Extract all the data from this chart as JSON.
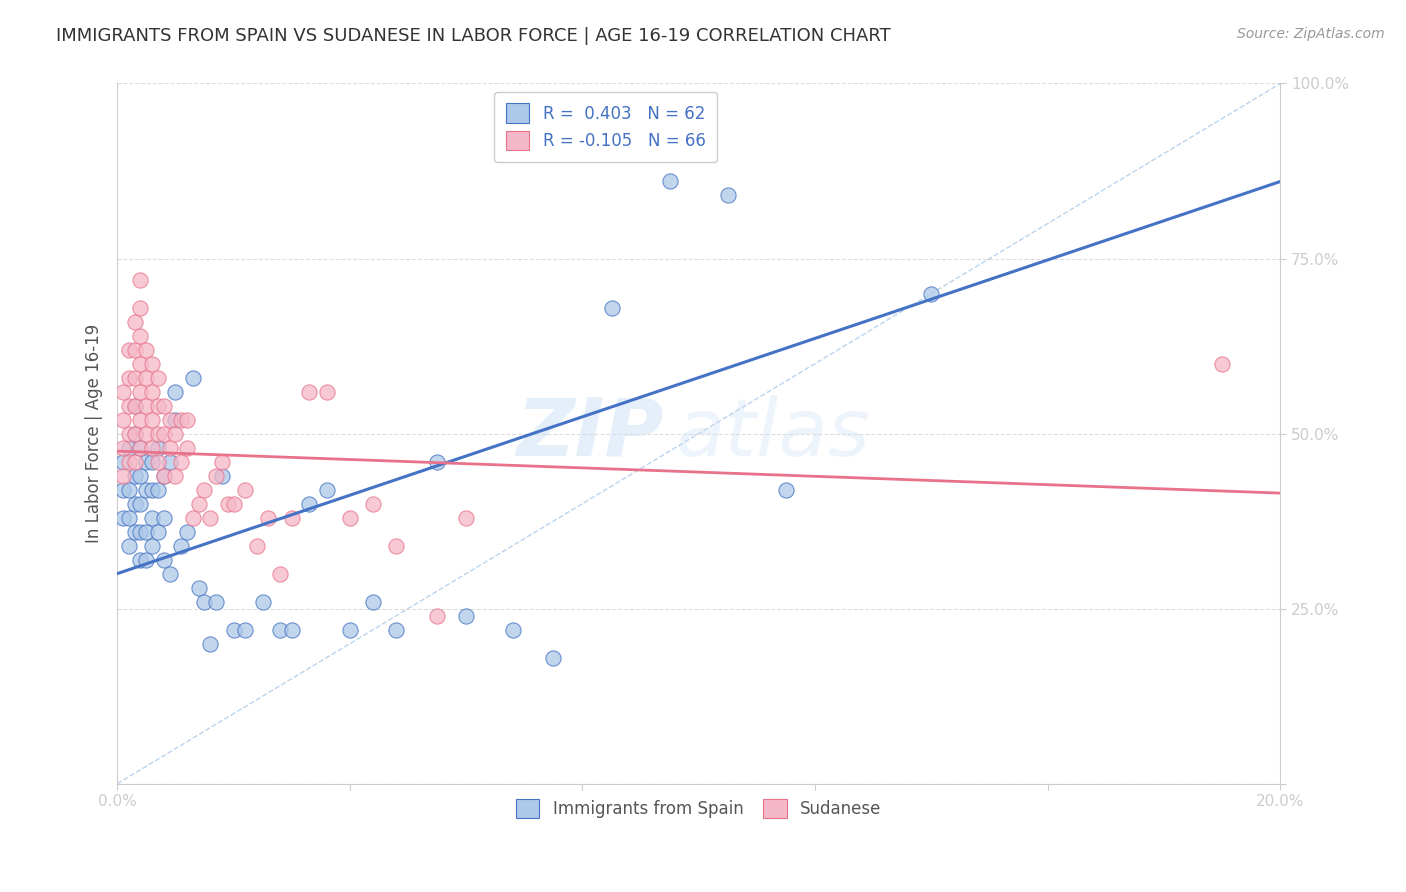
{
  "title": "IMMIGRANTS FROM SPAIN VS SUDANESE IN LABOR FORCE | AGE 16-19 CORRELATION CHART",
  "source": "Source: ZipAtlas.com",
  "ylabel": "In Labor Force | Age 16-19",
  "xlim": [
    0.0,
    0.2
  ],
  "ylim": [
    0.0,
    1.0
  ],
  "legend_entries": [
    {
      "label": "R =  0.403   N = 62",
      "color": "#adc8e8"
    },
    {
      "label": "R = -0.105   N = 66",
      "color": "#f5b8c8"
    }
  ],
  "legend_bottom": [
    "Immigrants from Spain",
    "Sudanese"
  ],
  "blue_color": "#4472c4",
  "pink_color": "#e8728a",
  "watermark_zip": "ZIP",
  "watermark_atlas": "atlas",
  "blue_line_x": [
    0.0,
    0.2
  ],
  "blue_line_y": [
    0.3,
    0.86
  ],
  "pink_line_x": [
    0.0,
    0.2
  ],
  "pink_line_y": [
    0.475,
    0.415
  ],
  "diag_line_x": [
    0.0,
    0.2
  ],
  "diag_line_y": [
    0.0,
    1.0
  ],
  "spain_x": [
    0.001,
    0.001,
    0.001,
    0.002,
    0.002,
    0.002,
    0.002,
    0.003,
    0.003,
    0.003,
    0.003,
    0.003,
    0.004,
    0.004,
    0.004,
    0.004,
    0.004,
    0.005,
    0.005,
    0.005,
    0.005,
    0.006,
    0.006,
    0.006,
    0.006,
    0.007,
    0.007,
    0.007,
    0.008,
    0.008,
    0.008,
    0.009,
    0.009,
    0.01,
    0.01,
    0.011,
    0.012,
    0.013,
    0.014,
    0.015,
    0.016,
    0.017,
    0.018,
    0.02,
    0.022,
    0.025,
    0.028,
    0.03,
    0.033,
    0.036,
    0.04,
    0.044,
    0.048,
    0.055,
    0.06,
    0.068,
    0.075,
    0.085,
    0.095,
    0.105,
    0.115,
    0.14
  ],
  "spain_y": [
    0.38,
    0.42,
    0.46,
    0.34,
    0.38,
    0.42,
    0.48,
    0.36,
    0.4,
    0.44,
    0.5,
    0.54,
    0.32,
    0.36,
    0.4,
    0.44,
    0.48,
    0.32,
    0.36,
    0.42,
    0.46,
    0.34,
    0.38,
    0.42,
    0.46,
    0.36,
    0.42,
    0.48,
    0.32,
    0.38,
    0.44,
    0.3,
    0.46,
    0.52,
    0.56,
    0.34,
    0.36,
    0.58,
    0.28,
    0.26,
    0.2,
    0.26,
    0.44,
    0.22,
    0.22,
    0.26,
    0.22,
    0.22,
    0.4,
    0.42,
    0.22,
    0.26,
    0.22,
    0.46,
    0.24,
    0.22,
    0.18,
    0.68,
    0.86,
    0.84,
    0.42,
    0.7
  ],
  "sudan_x": [
    0.001,
    0.001,
    0.001,
    0.001,
    0.002,
    0.002,
    0.002,
    0.002,
    0.002,
    0.003,
    0.003,
    0.003,
    0.003,
    0.003,
    0.003,
    0.004,
    0.004,
    0.004,
    0.004,
    0.004,
    0.004,
    0.004,
    0.005,
    0.005,
    0.005,
    0.005,
    0.006,
    0.006,
    0.006,
    0.006,
    0.007,
    0.007,
    0.007,
    0.007,
    0.008,
    0.008,
    0.008,
    0.009,
    0.009,
    0.01,
    0.01,
    0.011,
    0.011,
    0.012,
    0.012,
    0.013,
    0.014,
    0.015,
    0.016,
    0.017,
    0.018,
    0.019,
    0.02,
    0.022,
    0.024,
    0.026,
    0.028,
    0.03,
    0.033,
    0.036,
    0.04,
    0.044,
    0.048,
    0.055,
    0.06,
    0.19
  ],
  "sudan_y": [
    0.44,
    0.48,
    0.52,
    0.56,
    0.46,
    0.5,
    0.54,
    0.58,
    0.62,
    0.46,
    0.5,
    0.54,
    0.58,
    0.62,
    0.66,
    0.48,
    0.52,
    0.56,
    0.6,
    0.64,
    0.68,
    0.72,
    0.5,
    0.54,
    0.58,
    0.62,
    0.48,
    0.52,
    0.56,
    0.6,
    0.46,
    0.5,
    0.54,
    0.58,
    0.44,
    0.5,
    0.54,
    0.48,
    0.52,
    0.44,
    0.5,
    0.46,
    0.52,
    0.48,
    0.52,
    0.38,
    0.4,
    0.42,
    0.38,
    0.44,
    0.46,
    0.4,
    0.4,
    0.42,
    0.34,
    0.38,
    0.3,
    0.38,
    0.56,
    0.56,
    0.38,
    0.4,
    0.34,
    0.24,
    0.38,
    0.6
  ]
}
